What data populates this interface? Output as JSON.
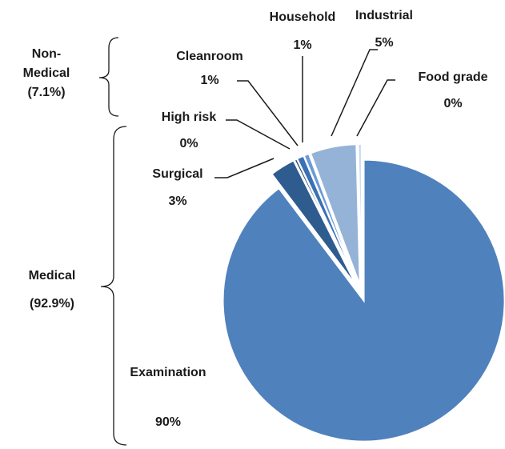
{
  "chart_data": {
    "type": "pie",
    "categories": [
      "Examination",
      "Surgical",
      "High risk",
      "Cleanroom",
      "Household",
      "Industrial",
      "Food grade"
    ],
    "values": [
      89.7,
      2.9,
      0.3,
      0.8,
      0.6,
      5.3,
      0.4
    ],
    "value_labels": [
      "90%",
      "3%",
      "0%",
      "1%",
      "1%",
      "5%",
      "0%"
    ],
    "colors": [
      "#4f81bd",
      "#2e5c8f",
      "#1f3d66",
      "#3b70b5",
      "#6b9bd6",
      "#95b3d7",
      "#c6d9f0"
    ],
    "groups": [
      {
        "label_lines": [
          "Non-",
          "Medical",
          "(7.1%)"
        ]
      },
      {
        "label_lines": [
          "Medical",
          "(92.9%)"
        ]
      }
    ]
  }
}
